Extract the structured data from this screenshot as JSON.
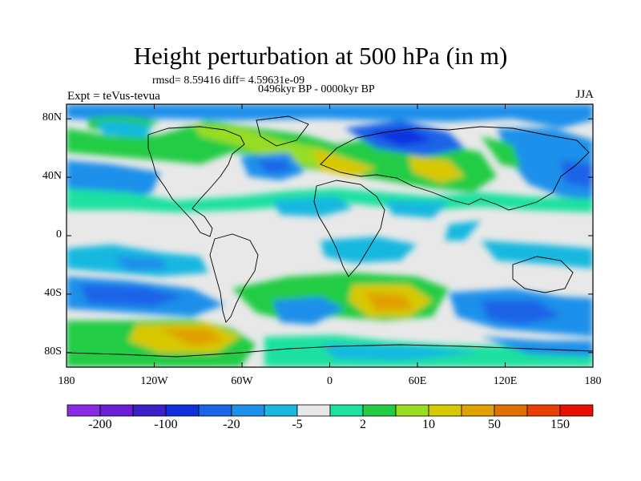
{
  "title": "Height perturbation at 500 hPa (in m)",
  "stats": "rmsd= 8.59416 diff= 4.59631e-09",
  "period": "0496kyr BP - 0000kyr BP",
  "experiment": "Expt = teVus-tevua",
  "season": "JJA",
  "map": {
    "projection": "cylindrical-equidistant",
    "lon_range": [
      -180,
      180
    ],
    "lat_range": [
      -90,
      90
    ],
    "lat_ticks": [
      {
        "value": 80,
        "label": "80N"
      },
      {
        "value": 40,
        "label": "40N"
      },
      {
        "value": 0,
        "label": "0"
      },
      {
        "value": -40,
        "label": "40S"
      },
      {
        "value": -80,
        "label": "80S"
      }
    ],
    "lon_ticks": [
      {
        "value": -180,
        "label": "180"
      },
      {
        "value": -120,
        "label": "120W"
      },
      {
        "value": -60,
        "label": "60W"
      },
      {
        "value": 0,
        "label": "0"
      },
      {
        "value": 60,
        "label": "60E"
      },
      {
        "value": 120,
        "label": "120E"
      },
      {
        "value": 180,
        "label": "180"
      }
    ]
  },
  "colorbar": {
    "colors": [
      "#8a2be2",
      "#6a1fd6",
      "#3a22c8",
      "#1030e0",
      "#1a64e8",
      "#1e90ea",
      "#19b8e0",
      "#e8e8e8",
      "#1ee0a0",
      "#22cc44",
      "#99dd22",
      "#d8c800",
      "#e0a000",
      "#e07000",
      "#e84000",
      "#e81000"
    ],
    "labels": [
      {
        "boundary": 1,
        "text": "-200"
      },
      {
        "boundary": 3,
        "text": "-100"
      },
      {
        "boundary": 5,
        "text": "-20"
      },
      {
        "boundary": 7,
        "text": "-5"
      },
      {
        "boundary": 9,
        "text": "2"
      },
      {
        "boundary": 11,
        "text": "10"
      },
      {
        "boundary": 13,
        "text": "50"
      },
      {
        "boundary": 15,
        "text": "150"
      }
    ]
  }
}
